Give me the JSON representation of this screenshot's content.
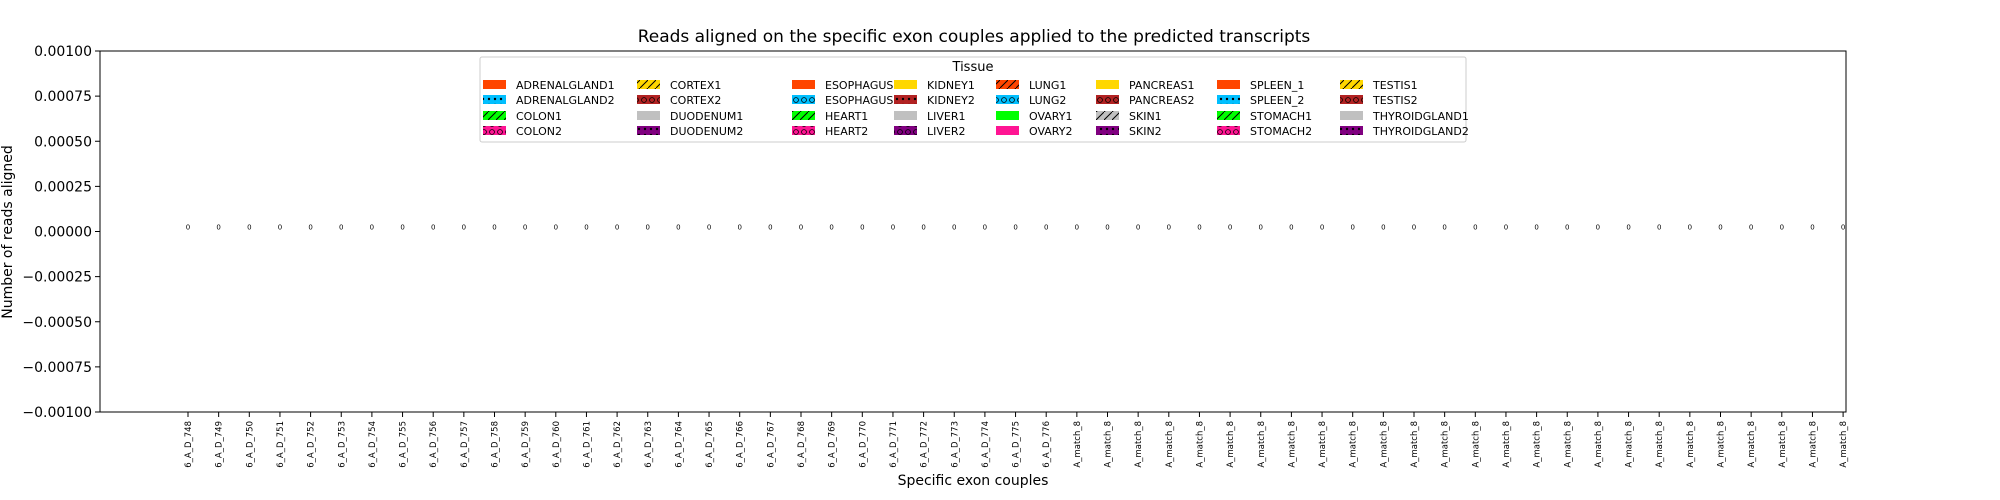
{
  "chart_data": {
    "type": "bar",
    "title": "Reads aligned on the specific exon couples applied to the predicted transcripts",
    "xlabel": "Specific exon couples",
    "ylabel": "Number of reads aligned",
    "ylim": [
      -0.001,
      0.001
    ],
    "yticks": [
      "0.00100",
      "0.00075",
      "0.00050",
      "0.00025",
      "0.00000",
      "−0.00025",
      "−0.00050",
      "−0.00075",
      "−0.00100"
    ],
    "ytick_values": [
      0.001,
      0.00075,
      0.0005,
      0.00025,
      0,
      -0.00025,
      -0.0005,
      -0.00075,
      -0.001
    ],
    "grid": false,
    "legend_placement": "top-center",
    "categories": [
      "6_A_D_748",
      "6_A_D_749",
      "6_A_D_750",
      "6_A_D_751",
      "6_A_D_752",
      "6_A_D_753",
      "6_A_D_754",
      "6_A_D_755",
      "6_A_D_756",
      "6_A_D_757",
      "6_A_D_758",
      "6_A_D_759",
      "6_A_D_760",
      "6_A_D_761",
      "6_A_D_762",
      "6_A_D_763",
      "6_A_D_764",
      "6_A_D_765",
      "6_A_D_766",
      "6_A_D_767",
      "6_A_D_768",
      "6_A_D_769",
      "6_A_D_770",
      "6_A_D_771",
      "6_A_D_772",
      "6_A_D_773",
      "6_A_D_774",
      "6_A_D_775",
      "6_A_D_776",
      "A_match_8",
      "A_match_8",
      "A_match_8",
      "A_match_8",
      "A_match_8",
      "A_match_8",
      "A_match_8",
      "A_match_8",
      "A_match_8",
      "A_match_8",
      "A_match_8",
      "A_match_8",
      "A_match_8",
      "A_match_8",
      "A_match_8",
      "A_match_8",
      "A_match_8",
      "A_match_8",
      "A_match_8",
      "A_match_8",
      "A_match_8",
      "A_match_8",
      "A_match_8",
      "A_match_8",
      "A_match_8",
      "A_match_8"
    ],
    "values": [
      0,
      0,
      0,
      0,
      0,
      0,
      0,
      0,
      0,
      0,
      0,
      0,
      0,
      0,
      0,
      0,
      0,
      0,
      0,
      0,
      0,
      0,
      0,
      0,
      0,
      0,
      0,
      0,
      0,
      0,
      0,
      0,
      0,
      0,
      0,
      0,
      0,
      0,
      0,
      0,
      0,
      0,
      0,
      0,
      0,
      0,
      0,
      0,
      0,
      0,
      0,
      0,
      0,
      0,
      0
    ],
    "data_labels": [
      "0",
      "0",
      "0",
      "0",
      "0",
      "0",
      "0",
      "0",
      "0",
      "0",
      "0",
      "0",
      "0",
      "0",
      "0",
      "0",
      "0",
      "0",
      "0",
      "0",
      "0",
      "0",
      "0",
      "0",
      "0",
      "0",
      "0",
      "0",
      "0",
      "0",
      "0",
      "0",
      "0",
      "0",
      "0",
      "0",
      "0",
      "0",
      "0",
      "0",
      "0",
      "0",
      "0",
      "0",
      "0",
      "0",
      "0",
      "0",
      "0",
      "0",
      "0",
      "0",
      "0",
      "0",
      "0"
    ],
    "legend_title": "Tissue",
    "legend": [
      {
        "name": "ADRENALGLAND1",
        "color": "#ff4500",
        "hatch": "none"
      },
      {
        "name": "ADRENALGLAND2",
        "color": "#00bfff",
        "hatch": "dots"
      },
      {
        "name": "COLON1",
        "color": "#00ff00",
        "hatch": "slash"
      },
      {
        "name": "COLON2",
        "color": "#ff1493",
        "hatch": "circles"
      },
      {
        "name": "CORTEX1",
        "color": "#ffd700",
        "hatch": "slash"
      },
      {
        "name": "CORTEX2",
        "color": "#b22222",
        "hatch": "circles"
      },
      {
        "name": "DUODENUM1",
        "color": "#c0c0c0",
        "hatch": "none"
      },
      {
        "name": "DUODENUM2",
        "color": "#800080",
        "hatch": "dots"
      },
      {
        "name": "ESOPHAGUS1",
        "color": "#ff4500",
        "hatch": "none"
      },
      {
        "name": "ESOPHAGUS2",
        "color": "#00bfff",
        "hatch": "circles"
      },
      {
        "name": "HEART1",
        "color": "#00ff00",
        "hatch": "slash"
      },
      {
        "name": "HEART2",
        "color": "#ff1493",
        "hatch": "circles"
      },
      {
        "name": "KIDNEY1",
        "color": "#ffd700",
        "hatch": "none"
      },
      {
        "name": "KIDNEY2",
        "color": "#b22222",
        "hatch": "dots"
      },
      {
        "name": "LIVER1",
        "color": "#c0c0c0",
        "hatch": "none"
      },
      {
        "name": "LIVER2",
        "color": "#800080",
        "hatch": "circles"
      },
      {
        "name": "LUNG1",
        "color": "#ff4500",
        "hatch": "slash"
      },
      {
        "name": "LUNG2",
        "color": "#00bfff",
        "hatch": "circles"
      },
      {
        "name": "OVARY1",
        "color": "#00ff00",
        "hatch": "none"
      },
      {
        "name": "OVARY2",
        "color": "#ff1493",
        "hatch": "none"
      },
      {
        "name": "PANCREAS1",
        "color": "#ffd700",
        "hatch": "none"
      },
      {
        "name": "PANCREAS2",
        "color": "#b22222",
        "hatch": "circles"
      },
      {
        "name": "SKIN1",
        "color": "#c0c0c0",
        "hatch": "slash"
      },
      {
        "name": "SKIN2",
        "color": "#800080",
        "hatch": "dots"
      },
      {
        "name": "SPLEEN_1",
        "color": "#ff4500",
        "hatch": "none"
      },
      {
        "name": "SPLEEN_2",
        "color": "#00bfff",
        "hatch": "dots"
      },
      {
        "name": "STOMACH1",
        "color": "#00ff00",
        "hatch": "slash"
      },
      {
        "name": "STOMACH2",
        "color": "#ff1493",
        "hatch": "circles"
      },
      {
        "name": "TESTIS1",
        "color": "#ffd700",
        "hatch": "slash"
      },
      {
        "name": "TESTIS2",
        "color": "#b22222",
        "hatch": "circles"
      },
      {
        "name": "THYROIDGLAND1",
        "color": "#c0c0c0",
        "hatch": "none"
      },
      {
        "name": "THYROIDGLAND2",
        "color": "#800080",
        "hatch": "dots"
      }
    ]
  }
}
